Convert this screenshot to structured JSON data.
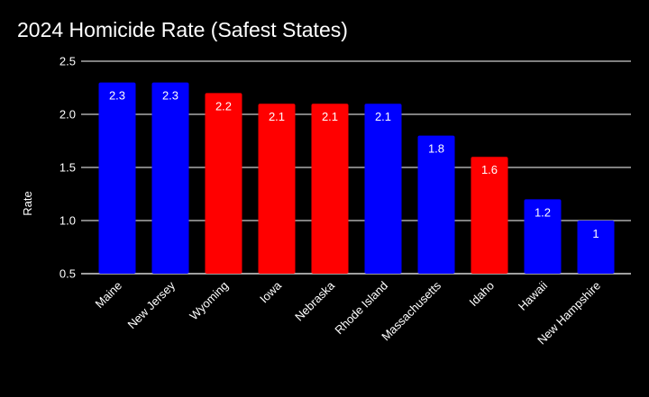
{
  "chart_data": {
    "type": "bar",
    "title": "2024 Homicide Rate (Safest States)",
    "xlabel": "",
    "ylabel": "Rate",
    "ylim": [
      0.5,
      2.5
    ],
    "yticks": [
      "0.5",
      "1.0",
      "1.5",
      "2.0",
      "2.5"
    ],
    "grid": true,
    "categories": [
      "Maine",
      "New Jersey",
      "Wyoming",
      "Iowa",
      "Nebraska",
      "Rhode Island",
      "Massachusetts",
      "Idaho",
      "Hawaii",
      "New Hampshire"
    ],
    "values": [
      2.3,
      2.3,
      2.2,
      2.1,
      2.1,
      2.1,
      1.8,
      1.6,
      1.2,
      1
    ],
    "value_labels": [
      "2.3",
      "2.3",
      "2.2",
      "2.1",
      "2.1",
      "2.1",
      "1.8",
      "1.6",
      "1.2",
      "1"
    ],
    "bar_colors": [
      "#0000ff",
      "#0000ff",
      "#ff0000",
      "#ff0000",
      "#ff0000",
      "#0000ff",
      "#0000ff",
      "#ff0000",
      "#0000ff",
      "#0000ff"
    ]
  },
  "colors": {
    "background": "#000000",
    "text": "#ffffff",
    "gridline": "#ffffff",
    "blue": "#0000ff",
    "red": "#ff0000"
  }
}
